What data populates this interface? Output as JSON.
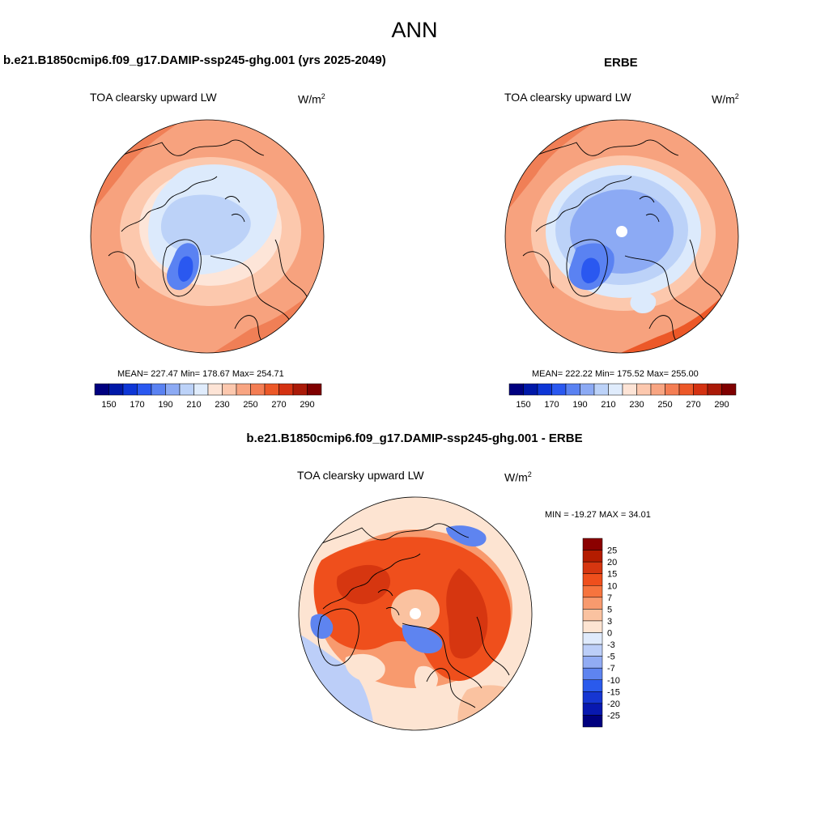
{
  "figure": {
    "title": "ANN"
  },
  "panels": {
    "model": {
      "title": "b.e21.B1850cmip6.f09_g17.DAMIP-ssp245-ghg.001 (yrs 2025-2049)",
      "variable": "TOA clearsky upward LW",
      "units_base": "W/m",
      "units_exp": "2",
      "stats": "MEAN= 227.47  Min= 178.67  Max= 254.71"
    },
    "obs": {
      "title": "ERBE",
      "variable": "TOA clearsky upward LW",
      "units_base": "W/m",
      "units_exp": "2",
      "stats": "MEAN= 222.22  Min= 175.52  Max= 255.00"
    },
    "diff": {
      "title": "b.e21.B1850cmip6.f09_g17.DAMIP-ssp245-ghg.001 - ERBE",
      "variable": "TOA clearsky upward LW",
      "units_base": "W/m",
      "units_exp": "2",
      "stats": "MIN = -19.27 MAX =  34.01"
    }
  },
  "colorbars": {
    "absolute": {
      "colors": [
        "#00007f",
        "#0018a8",
        "#0e36d6",
        "#2a58f0",
        "#5a82f2",
        "#8caaf4",
        "#bcd2f8",
        "#e0ecfc",
        "#fde4d6",
        "#fcc8ae",
        "#f8a582",
        "#f47e54",
        "#ec5828",
        "#d43212",
        "#aa1a08",
        "#7f0000"
      ],
      "labels": [
        "150",
        "170",
        "190",
        "210",
        "230",
        "250",
        "270",
        "290"
      ]
    },
    "difference": {
      "colors": [
        "#8b0000",
        "#b41c00",
        "#d63610",
        "#ef4f1c",
        "#f6743e",
        "#f89a6e",
        "#fac2a0",
        "#fde4d2",
        "#dfeafc",
        "#bccef8",
        "#92acf4",
        "#5e84f0",
        "#2a5aec",
        "#1636d2",
        "#0818b0",
        "#00007f"
      ],
      "labels": [
        "25",
        "20",
        "15",
        "10",
        "7",
        "5",
        "3",
        "0",
        "-3",
        "-5",
        "-7",
        "-10",
        "-15",
        "-20",
        "-25"
      ]
    }
  },
  "map_palette": {
    "land_outline": "#000000",
    "pole": "#ffffff"
  }
}
